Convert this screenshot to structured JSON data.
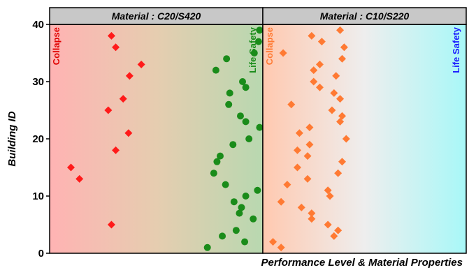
{
  "chart_data": {
    "type": "scatter",
    "xlabel": "Performance Level & Material Properties",
    "ylabel": "Building ID",
    "ylim": [
      0,
      40
    ],
    "yticks": [
      0,
      10,
      20,
      30,
      40
    ],
    "grid": false,
    "panels": [
      {
        "strip_label": "Material : C20/S420",
        "background": {
          "from": "#ffb3b3",
          "to": "#b8d8b0"
        },
        "annotations": [
          {
            "text": "Collapse",
            "color": "#e00000",
            "side": "left"
          },
          {
            "text": "Life Safety",
            "color": "#1a8c1a",
            "side": "right"
          }
        ],
        "series": [
          {
            "name": "Collapse",
            "marker": "diamond",
            "color": "#ff1a1a",
            "points": [
              {
                "x": 0.2,
                "y": 15
              },
              {
                "x": 0.28,
                "y": 13
              },
              {
                "x": 0.55,
                "y": 25
              },
              {
                "x": 0.62,
                "y": 18
              },
              {
                "x": 0.69,
                "y": 27
              },
              {
                "x": 0.74,
                "y": 21
              },
              {
                "x": 0.75,
                "y": 31
              },
              {
                "x": 0.86,
                "y": 33
              },
              {
                "x": 0.58,
                "y": 5
              },
              {
                "x": 0.58,
                "y": 38
              },
              {
                "x": 0.62,
                "y": 36
              }
            ]
          },
          {
            "name": "Life Safety",
            "marker": "circle",
            "color": "#1a8c1a",
            "points": [
              {
                "x": 1.48,
                "y": 1
              },
              {
                "x": 1.54,
                "y": 14
              },
              {
                "x": 1.57,
                "y": 16
              },
              {
                "x": 1.6,
                "y": 17
              },
              {
                "x": 1.56,
                "y": 32
              },
              {
                "x": 1.62,
                "y": 3
              },
              {
                "x": 1.65,
                "y": 12
              },
              {
                "x": 1.66,
                "y": 34
              },
              {
                "x": 1.68,
                "y": 26
              },
              {
                "x": 1.69,
                "y": 28
              },
              {
                "x": 1.72,
                "y": 19
              },
              {
                "x": 1.73,
                "y": 9
              },
              {
                "x": 1.75,
                "y": 4
              },
              {
                "x": 1.78,
                "y": 7
              },
              {
                "x": 1.8,
                "y": 8
              },
              {
                "x": 1.79,
                "y": 24
              },
              {
                "x": 1.81,
                "y": 30
              },
              {
                "x": 1.84,
                "y": 29
              },
              {
                "x": 1.84,
                "y": 23
              },
              {
                "x": 1.83,
                "y": 2
              },
              {
                "x": 1.84,
                "y": 10
              },
              {
                "x": 1.87,
                "y": 20
              },
              {
                "x": 1.91,
                "y": 6
              },
              {
                "x": 1.92,
                "y": 35
              },
              {
                "x": 1.95,
                "y": 11
              },
              {
                "x": 1.97,
                "y": 22
              },
              {
                "x": 1.96,
                "y": 37
              },
              {
                "x": 1.97,
                "y": 39
              }
            ]
          }
        ]
      },
      {
        "strip_label": "Material : C10/S220",
        "background": {
          "from": "#ffc9b0",
          "to": "#a8f8f8"
        },
        "annotations": [
          {
            "text": "Collapse",
            "color": "#ff7a33",
            "side": "left"
          },
          {
            "text": "Life Safety",
            "color": "#1a1aff",
            "side": "right"
          }
        ],
        "series": [
          {
            "name": "Collapse",
            "marker": "diamond",
            "color": "#ff7a33",
            "points": [
              {
                "x": 0.1,
                "y": 2
              },
              {
                "x": 0.18,
                "y": 1
              },
              {
                "x": 0.18,
                "y": 9
              },
              {
                "x": 0.2,
                "y": 35
              },
              {
                "x": 0.24,
                "y": 12
              },
              {
                "x": 0.28,
                "y": 26
              },
              {
                "x": 0.34,
                "y": 15
              },
              {
                "x": 0.34,
                "y": 18
              },
              {
                "x": 0.36,
                "y": 21
              },
              {
                "x": 0.38,
                "y": 8
              },
              {
                "x": 0.44,
                "y": 13
              },
              {
                "x": 0.44,
                "y": 17
              },
              {
                "x": 0.46,
                "y": 19
              },
              {
                "x": 0.46,
                "y": 22
              },
              {
                "x": 0.48,
                "y": 6
              },
              {
                "x": 0.48,
                "y": 7
              },
              {
                "x": 0.48,
                "y": 38
              },
              {
                "x": 0.5,
                "y": 30
              },
              {
                "x": 0.5,
                "y": 32
              },
              {
                "x": 0.56,
                "y": 29
              },
              {
                "x": 0.56,
                "y": 33
              },
              {
                "x": 0.58,
                "y": 37
              },
              {
                "x": 0.64,
                "y": 5
              },
              {
                "x": 0.64,
                "y": 11
              },
              {
                "x": 0.66,
                "y": 10
              },
              {
                "x": 0.68,
                "y": 25
              },
              {
                "x": 0.7,
                "y": 3
              },
              {
                "x": 0.7,
                "y": 28
              },
              {
                "x": 0.72,
                "y": 31
              },
              {
                "x": 0.74,
                "y": 4
              },
              {
                "x": 0.74,
                "y": 14
              },
              {
                "x": 0.76,
                "y": 27
              },
              {
                "x": 0.78,
                "y": 16
              },
              {
                "x": 0.76,
                "y": 23
              },
              {
                "x": 0.78,
                "y": 24
              },
              {
                "x": 0.78,
                "y": 34
              },
              {
                "x": 0.8,
                "y": 36
              },
              {
                "x": 0.76,
                "y": 39
              },
              {
                "x": 0.82,
                "y": 20
              }
            ]
          }
        ]
      }
    ]
  }
}
